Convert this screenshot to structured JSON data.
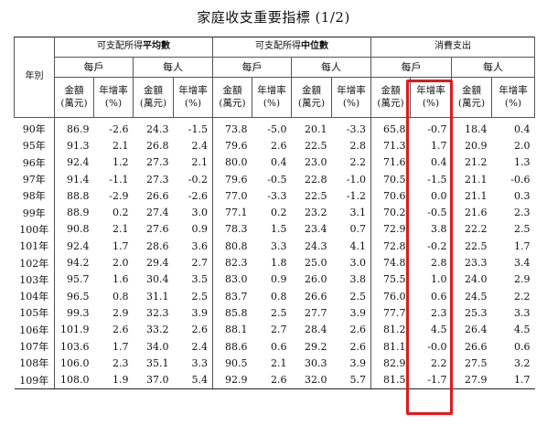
{
  "title": "家庭收支重要指標 (1/2)",
  "header": {
    "year_label": "年別",
    "group1_pre": "可支配所得",
    "group1_bold": "平均數",
    "group2_pre": "可支配所得",
    "group2_bold": "中位數",
    "group3": "消費支出",
    "per_household": "每戶",
    "per_person": "每人",
    "amount": "金額",
    "amount_unit": "(萬元)",
    "growth": "年增率",
    "growth_unit": "(%)"
  },
  "rows": [
    {
      "year": "90年",
      "v": [
        "86.9",
        "-2.6",
        "24.3",
        "-1.5",
        "73.8",
        "-5.0",
        "20.1",
        "-3.3",
        "65.8",
        "-0.7",
        "18.4",
        "0.4"
      ]
    },
    {
      "year": "95年",
      "v": [
        "91.3",
        "2.1",
        "26.8",
        "2.4",
        "79.6",
        "2.6",
        "22.5",
        "2.8",
        "71.3",
        "1.7",
        "20.9",
        "2.0"
      ]
    },
    {
      "year": "96年",
      "v": [
        "92.4",
        "1.2",
        "27.3",
        "2.1",
        "80.0",
        "0.4",
        "23.0",
        "2.2",
        "71.6",
        "0.4",
        "21.2",
        "1.3"
      ]
    },
    {
      "year": "97年",
      "v": [
        "91.4",
        "-1.1",
        "27.3",
        "-0.2",
        "79.6",
        "-0.5",
        "22.8",
        "-1.0",
        "70.5",
        "-1.5",
        "21.1",
        "-0.6"
      ]
    },
    {
      "year": "98年",
      "v": [
        "88.8",
        "-2.9",
        "26.6",
        "-2.6",
        "77.0",
        "-3.3",
        "22.5",
        "-1.2",
        "70.6",
        "0.0",
        "21.1",
        "0.3"
      ]
    },
    {
      "year": "99年",
      "v": [
        "88.9",
        "0.2",
        "27.4",
        "3.0",
        "77.1",
        "0.2",
        "23.2",
        "3.1",
        "70.2",
        "-0.5",
        "21.6",
        "2.3"
      ]
    },
    {
      "year": "100年",
      "v": [
        "90.8",
        "2.1",
        "27.6",
        "0.9",
        "78.3",
        "1.5",
        "23.4",
        "0.7",
        "72.9",
        "3.8",
        "22.2",
        "2.5"
      ]
    },
    {
      "year": "101年",
      "v": [
        "92.4",
        "1.7",
        "28.6",
        "3.6",
        "80.8",
        "3.3",
        "24.3",
        "4.1",
        "72.8",
        "-0.2",
        "22.5",
        "1.7"
      ]
    },
    {
      "year": "102年",
      "v": [
        "94.2",
        "2.0",
        "29.4",
        "2.7",
        "82.3",
        "1.8",
        "25.0",
        "3.0",
        "74.8",
        "2.8",
        "23.3",
        "3.4"
      ]
    },
    {
      "year": "103年",
      "v": [
        "95.7",
        "1.6",
        "30.4",
        "3.5",
        "83.0",
        "0.9",
        "26.0",
        "3.8",
        "75.5",
        "1.0",
        "24.0",
        "2.9"
      ]
    },
    {
      "year": "104年",
      "v": [
        "96.5",
        "0.8",
        "31.1",
        "2.5",
        "83.7",
        "0.8",
        "26.6",
        "2.5",
        "76.0",
        "0.6",
        "24.5",
        "2.2"
      ]
    },
    {
      "year": "105年",
      "v": [
        "99.3",
        "2.9",
        "32.3",
        "3.9",
        "85.8",
        "2.5",
        "27.7",
        "3.9",
        "77.7",
        "2.3",
        "25.3",
        "3.3"
      ]
    },
    {
      "year": "106年",
      "v": [
        "101.9",
        "2.6",
        "33.2",
        "2.6",
        "88.1",
        "2.7",
        "28.4",
        "2.6",
        "81.2",
        "4.5",
        "26.4",
        "4.5"
      ]
    },
    {
      "year": "107年",
      "v": [
        "103.6",
        "1.7",
        "34.0",
        "2.4",
        "88.6",
        "0.6",
        "29.2",
        "2.6",
        "81.1",
        "-0.0",
        "26.6",
        "0.6"
      ]
    },
    {
      "year": "108年",
      "v": [
        "106.0",
        "2.3",
        "35.1",
        "3.3",
        "90.5",
        "2.1",
        "30.3",
        "3.9",
        "82.9",
        "2.2",
        "27.5",
        "3.2"
      ]
    },
    {
      "year": "109年",
      "v": [
        "108.0",
        "1.9",
        "37.0",
        "5.4",
        "92.9",
        "2.6",
        "32.0",
        "5.7",
        "81.5",
        "-1.7",
        "27.9",
        "1.7"
      ]
    }
  ],
  "colors": {
    "highlight": "#e0191b",
    "rule": "#555555",
    "text": "#111111"
  }
}
